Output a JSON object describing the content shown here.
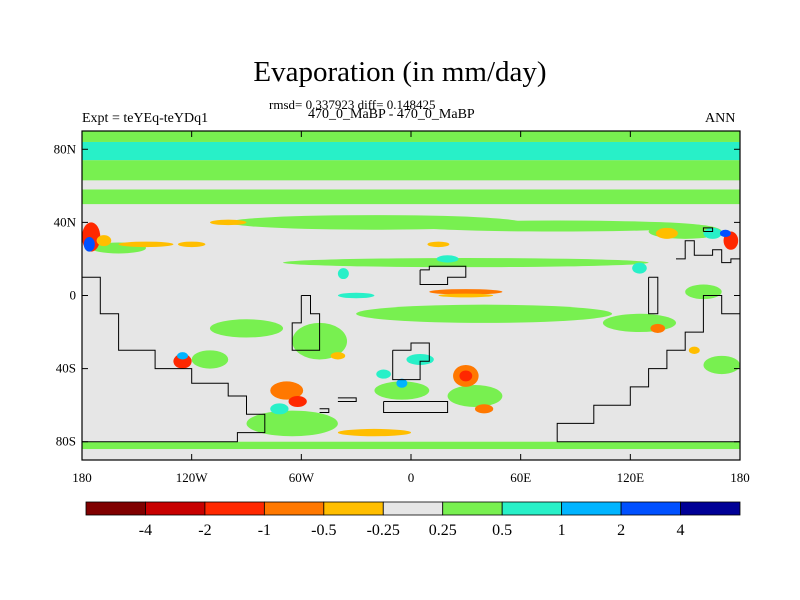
{
  "chart_data": {
    "type": "heatmap",
    "title": "Evaporation (in mm/day)",
    "stats_text": "rmsd= 0.337923 diff= 0.148425",
    "subtitle": "470_0_MaBP - 470_0_MaBP",
    "left_label": "Expt = teYEq-teYDq1",
    "right_label": "ANN",
    "xlim": [
      -180,
      180
    ],
    "ylim": [
      -90,
      90
    ],
    "x_ticks": [
      {
        "value": -180,
        "label": "180"
      },
      {
        "value": -120,
        "label": "120W"
      },
      {
        "value": -60,
        "label": "60W"
      },
      {
        "value": 0,
        "label": "0"
      },
      {
        "value": 60,
        "label": "60E"
      },
      {
        "value": 120,
        "label": "120E"
      },
      {
        "value": 180,
        "label": "180"
      }
    ],
    "y_ticks": [
      {
        "value": 80,
        "label": "80N"
      },
      {
        "value": 40,
        "label": "40N"
      },
      {
        "value": 0,
        "label": "0"
      },
      {
        "value": -40,
        "label": "40S"
      },
      {
        "value": -80,
        "label": "80S"
      }
    ],
    "colorbar": {
      "colors": [
        "#800000",
        "#c80000",
        "#ff2800",
        "#ff7800",
        "#ffbe00",
        "#e6e6e6",
        "#78f050",
        "#28f0c8",
        "#00b4ff",
        "#0050ff",
        "#000096"
      ],
      "labels": [
        "-4",
        "-2",
        "-1",
        "-0.5",
        "-0.25",
        "0.25",
        "0.5",
        "1",
        "2",
        "4"
      ]
    },
    "bands": [
      {
        "lat": [
          74,
          84
        ],
        "color": "#28f0c8"
      },
      {
        "lat": [
          84,
          90
        ],
        "color": "#78f050"
      },
      {
        "lat": [
          63,
          74
        ],
        "color": "#78f050"
      },
      {
        "lat": [
          50,
          58
        ],
        "color": "#78f050"
      },
      {
        "lat": [
          -84,
          -80
        ],
        "color": "#78f050"
      }
    ],
    "features": [
      {
        "lon": -160,
        "lat": 26,
        "w": 30,
        "h": 6,
        "color": "#78f050"
      },
      {
        "lon": -20,
        "lat": 40,
        "w": 160,
        "h": 8,
        "color": "#78f050"
      },
      {
        "lon": 80,
        "lat": 38,
        "w": 160,
        "h": 6,
        "color": "#78f050"
      },
      {
        "lon": 30,
        "lat": 18,
        "w": 200,
        "h": 5,
        "color": "#78f050"
      },
      {
        "lon": 40,
        "lat": -10,
        "w": 140,
        "h": 10,
        "color": "#78f050"
      },
      {
        "lon": -90,
        "lat": -18,
        "w": 40,
        "h": 10,
        "color": "#78f050"
      },
      {
        "lon": -110,
        "lat": -35,
        "w": 20,
        "h": 10,
        "color": "#78f050"
      },
      {
        "lon": -65,
        "lat": -70,
        "w": 50,
        "h": 14,
        "color": "#78f050"
      },
      {
        "lon": -5,
        "lat": -52,
        "w": 30,
        "h": 10,
        "color": "#78f050"
      },
      {
        "lon": 35,
        "lat": -55,
        "w": 30,
        "h": 12,
        "color": "#78f050"
      },
      {
        "lon": 150,
        "lat": 35,
        "w": 40,
        "h": 8,
        "color": "#78f050"
      },
      {
        "lon": 125,
        "lat": -15,
        "w": 40,
        "h": 10,
        "color": "#78f050"
      },
      {
        "lon": -50,
        "lat": -25,
        "w": 30,
        "h": 20,
        "color": "#78f050"
      },
      {
        "lon": 170,
        "lat": -38,
        "w": 20,
        "h": 10,
        "color": "#78f050"
      },
      {
        "lon": 160,
        "lat": 2,
        "w": 20,
        "h": 8,
        "color": "#78f050"
      },
      {
        "lon": -175,
        "lat": 32,
        "w": 10,
        "h": 16,
        "color": "#ff2800"
      },
      {
        "lon": -176,
        "lat": 28,
        "w": 6,
        "h": 8,
        "color": "#0050ff"
      },
      {
        "lon": -168,
        "lat": 30,
        "w": 8,
        "h": 6,
        "color": "#ffbe00"
      },
      {
        "lon": -145,
        "lat": 28,
        "w": 30,
        "h": 3,
        "color": "#ffbe00"
      },
      {
        "lon": -120,
        "lat": 28,
        "w": 15,
        "h": 3,
        "color": "#ffbe00"
      },
      {
        "lon": 15,
        "lat": 28,
        "w": 12,
        "h": 3,
        "color": "#ffbe00"
      },
      {
        "lon": 30,
        "lat": 2,
        "w": 40,
        "h": 3,
        "color": "#ff7800"
      },
      {
        "lon": 30,
        "lat": 0,
        "w": 30,
        "h": 2,
        "color": "#ffbe00"
      },
      {
        "lon": -30,
        "lat": 0,
        "w": 20,
        "h": 3,
        "color": "#28f0c8"
      },
      {
        "lon": -37,
        "lat": 12,
        "w": 6,
        "h": 6,
        "color": "#28f0c8"
      },
      {
        "lon": -125,
        "lat": -36,
        "w": 10,
        "h": 8,
        "color": "#ff2800"
      },
      {
        "lon": -125,
        "lat": -33,
        "w": 6,
        "h": 4,
        "color": "#00b4ff"
      },
      {
        "lon": -68,
        "lat": -52,
        "w": 18,
        "h": 10,
        "color": "#ff7800"
      },
      {
        "lon": -62,
        "lat": -58,
        "w": 10,
        "h": 6,
        "color": "#ff2800"
      },
      {
        "lon": -72,
        "lat": -62,
        "w": 10,
        "h": 6,
        "color": "#28f0c8"
      },
      {
        "lon": 30,
        "lat": -44,
        "w": 14,
        "h": 12,
        "color": "#ff7800"
      },
      {
        "lon": 30,
        "lat": -44,
        "w": 7,
        "h": 6,
        "color": "#ff2800"
      },
      {
        "lon": 40,
        "lat": -62,
        "w": 10,
        "h": 5,
        "color": "#ff7800"
      },
      {
        "lon": -40,
        "lat": -33,
        "w": 8,
        "h": 4,
        "color": "#ffbe00"
      },
      {
        "lon": -15,
        "lat": -43,
        "w": 8,
        "h": 5,
        "color": "#28f0c8"
      },
      {
        "lon": 5,
        "lat": -35,
        "w": 15,
        "h": 6,
        "color": "#28f0c8"
      },
      {
        "lon": 140,
        "lat": 34,
        "w": 12,
        "h": 6,
        "color": "#ffbe00"
      },
      {
        "lon": 165,
        "lat": 34,
        "w": 10,
        "h": 6,
        "color": "#28f0c8"
      },
      {
        "lon": 175,
        "lat": 30,
        "w": 8,
        "h": 10,
        "color": "#ff2800"
      },
      {
        "lon": 172,
        "lat": 34,
        "w": 6,
        "h": 4,
        "color": "#0050ff"
      },
      {
        "lon": 125,
        "lat": 15,
        "w": 8,
        "h": 6,
        "color": "#28f0c8"
      },
      {
        "lon": 135,
        "lat": -18,
        "w": 8,
        "h": 5,
        "color": "#ff7800"
      },
      {
        "lon": 155,
        "lat": -30,
        "w": 6,
        "h": 4,
        "color": "#ffbe00"
      },
      {
        "lon": -20,
        "lat": -75,
        "w": 40,
        "h": 4,
        "color": "#ffbe00"
      },
      {
        "lon": 20,
        "lat": 20,
        "w": 12,
        "h": 4,
        "color": "#28f0c8"
      },
      {
        "lon": -5,
        "lat": -48,
        "w": 6,
        "h": 5,
        "color": "#00b4ff"
      },
      {
        "lon": -100,
        "lat": 40,
        "w": 20,
        "h": 3,
        "color": "#ffbe00"
      }
    ],
    "outlines": [
      [
        [
          -180,
          10
        ],
        [
          -170,
          10
        ],
        [
          -170,
          -10
        ],
        [
          -160,
          -10
        ],
        [
          -160,
          -30
        ],
        [
          -140,
          -30
        ],
        [
          -140,
          -40
        ],
        [
          -120,
          -40
        ],
        [
          -120,
          -48
        ],
        [
          -100,
          -48
        ],
        [
          -100,
          -55
        ],
        [
          -90,
          -55
        ],
        [
          -90,
          -65
        ],
        [
          -80,
          -65
        ],
        [
          -80,
          -75
        ],
        [
          -95,
          -75
        ],
        [
          -95,
          -80
        ],
        [
          -180,
          -80
        ]
      ],
      [
        [
          -60,
          0
        ],
        [
          -55,
          0
        ],
        [
          -55,
          -10
        ],
        [
          -50,
          -10
        ],
        [
          -50,
          -30
        ],
        [
          -60,
          -30
        ],
        [
          -60,
          -30
        ],
        [
          -65,
          -30
        ],
        [
          -65,
          -15
        ],
        [
          -60,
          -15
        ],
        [
          -60,
          0
        ]
      ],
      [
        [
          -10,
          -30
        ],
        [
          0,
          -30
        ],
        [
          0,
          -26
        ],
        [
          10,
          -26
        ],
        [
          10,
          -36
        ],
        [
          5,
          -36
        ],
        [
          5,
          -46
        ],
        [
          -10,
          -46
        ],
        [
          -10,
          -30
        ]
      ],
      [
        [
          5,
          14
        ],
        [
          10,
          14
        ],
        [
          10,
          16
        ],
        [
          30,
          16
        ],
        [
          30,
          10
        ],
        [
          20,
          10
        ],
        [
          20,
          6
        ],
        [
          5,
          6
        ],
        [
          5,
          14
        ]
      ],
      [
        [
          -15,
          -58
        ],
        [
          20,
          -58
        ],
        [
          20,
          -64
        ],
        [
          -15,
          -64
        ],
        [
          -15,
          -58
        ]
      ],
      [
        [
          -40,
          -56
        ],
        [
          -30,
          -56
        ],
        [
          -30,
          -58
        ],
        [
          -40,
          -58
        ]
      ],
      [
        [
          -50,
          -62
        ],
        [
          -45,
          -62
        ],
        [
          -45,
          -64
        ],
        [
          -50,
          -64
        ]
      ],
      [
        [
          130,
          10
        ],
        [
          135,
          10
        ],
        [
          135,
          -10
        ],
        [
          130,
          -10
        ],
        [
          130,
          10
        ]
      ],
      [
        [
          160,
          35
        ],
        [
          165,
          35
        ],
        [
          165,
          37
        ],
        [
          160,
          37
        ],
        [
          160,
          35
        ]
      ],
      [
        [
          145,
          20
        ],
        [
          150,
          20
        ],
        [
          150,
          30
        ],
        [
          155,
          30
        ],
        [
          155,
          22
        ],
        [
          165,
          22
        ],
        [
          165,
          25
        ],
        [
          170,
          25
        ],
        [
          170,
          18
        ],
        [
          175,
          18
        ],
        [
          175,
          20
        ],
        [
          180,
          20
        ]
      ],
      [
        [
          180,
          -10
        ],
        [
          170,
          -10
        ],
        [
          170,
          0
        ],
        [
          160,
          0
        ],
        [
          160,
          -20
        ],
        [
          150,
          -20
        ],
        [
          150,
          -30
        ],
        [
          140,
          -30
        ],
        [
          140,
          -40
        ],
        [
          130,
          -40
        ],
        [
          130,
          -50
        ],
        [
          120,
          -50
        ],
        [
          120,
          -60
        ],
        [
          100,
          -60
        ],
        [
          100,
          -70
        ],
        [
          80,
          -70
        ],
        [
          80,
          -80
        ],
        [
          180,
          -80
        ]
      ]
    ]
  }
}
